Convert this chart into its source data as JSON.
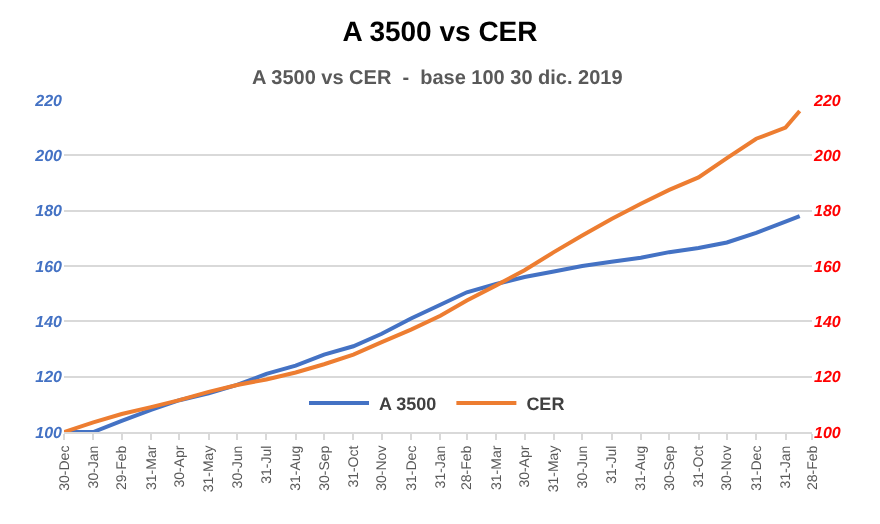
{
  "chart_data": {
    "type": "line",
    "title": "A 3500 vs CER",
    "subtitle": "A 3500 vs CER  -  base 100 30 dic. 2019",
    "x": [
      "2019-12-30",
      "2020-01-30",
      "2020-02-29",
      "2020-03-31",
      "2020-04-30",
      "2020-05-31",
      "2020-06-30",
      "2020-07-31",
      "2020-08-31",
      "2020-09-30",
      "2020-10-31",
      "2020-11-30",
      "2020-12-31",
      "2021-01-31",
      "2021-02-28",
      "2021-03-31",
      "2021-04-30",
      "2021-05-31",
      "2021-06-30",
      "2021-07-31",
      "2021-08-31",
      "2021-09-30",
      "2021-10-31",
      "2021-11-30",
      "2021-12-31",
      "2022-01-31",
      "2022-02-15"
    ],
    "series": [
      {
        "name": "A 3500",
        "color": "#4472c4",
        "values": [
          100,
          100,
          104,
          108,
          111.5,
          114,
          117,
          121,
          124,
          128,
          131,
          135.5,
          141,
          146,
          150.5,
          153.5,
          156,
          158,
          160,
          161.5,
          163,
          165,
          166.5,
          168.5,
          172,
          176,
          178
        ]
      },
      {
        "name": "CER",
        "color": "#ed7d31",
        "axis": "y2",
        "values": [
          100,
          103.5,
          106.5,
          109,
          111.5,
          114.5,
          117,
          119,
          121.5,
          124.5,
          128,
          132.5,
          137,
          142,
          147.5,
          153,
          158.5,
          165,
          171,
          177,
          182.5,
          187.5,
          192,
          199,
          206,
          210,
          216
        ]
      }
    ],
    "xlim": [
      "2019-12-30",
      "2022-02-28"
    ],
    "xticks": [
      {
        "value": "2019-12-30",
        "label": "30-Dec"
      },
      {
        "value": "2020-01-30",
        "label": "30-Jan"
      },
      {
        "value": "2020-02-29",
        "label": "29-Feb"
      },
      {
        "value": "2020-03-31",
        "label": "31-Mar"
      },
      {
        "value": "2020-04-30",
        "label": "30-Apr"
      },
      {
        "value": "2020-05-31",
        "label": "31-May"
      },
      {
        "value": "2020-06-30",
        "label": "30-Jun"
      },
      {
        "value": "2020-07-31",
        "label": "31-Jul"
      },
      {
        "value": "2020-08-31",
        "label": "31-Aug"
      },
      {
        "value": "2020-09-30",
        "label": "30-Sep"
      },
      {
        "value": "2020-10-31",
        "label": "31-Oct"
      },
      {
        "value": "2020-11-30",
        "label": "30-Nov"
      },
      {
        "value": "2020-12-31",
        "label": "31-Dec"
      },
      {
        "value": "2021-01-31",
        "label": "31-Jan"
      },
      {
        "value": "2021-02-28",
        "label": "28-Feb"
      },
      {
        "value": "2021-03-31",
        "label": "31-Mar"
      },
      {
        "value": "2021-04-30",
        "label": "30-Apr"
      },
      {
        "value": "2021-05-31",
        "label": "31-May"
      },
      {
        "value": "2021-06-30",
        "label": "30-Jun"
      },
      {
        "value": "2021-07-31",
        "label": "31-Jul"
      },
      {
        "value": "2021-08-31",
        "label": "31-Aug"
      },
      {
        "value": "2021-09-30",
        "label": "30-Sep"
      },
      {
        "value": "2021-10-31",
        "label": "31-Oct"
      },
      {
        "value": "2021-11-30",
        "label": "30-Nov"
      },
      {
        "value": "2021-12-31",
        "label": "31-Dec"
      },
      {
        "value": "2022-01-31",
        "label": "31-Jan"
      },
      {
        "value": "2022-02-28",
        "label": "28-Feb"
      }
    ],
    "ylim": [
      100,
      220
    ],
    "yticks": [
      100,
      120,
      140,
      160,
      180,
      200,
      220
    ],
    "y2lim": [
      100,
      220
    ],
    "y2ticks": [
      100,
      120,
      140,
      160,
      180,
      200,
      220
    ],
    "grid": "y",
    "legend": "bottom",
    "line_style": "solid"
  }
}
